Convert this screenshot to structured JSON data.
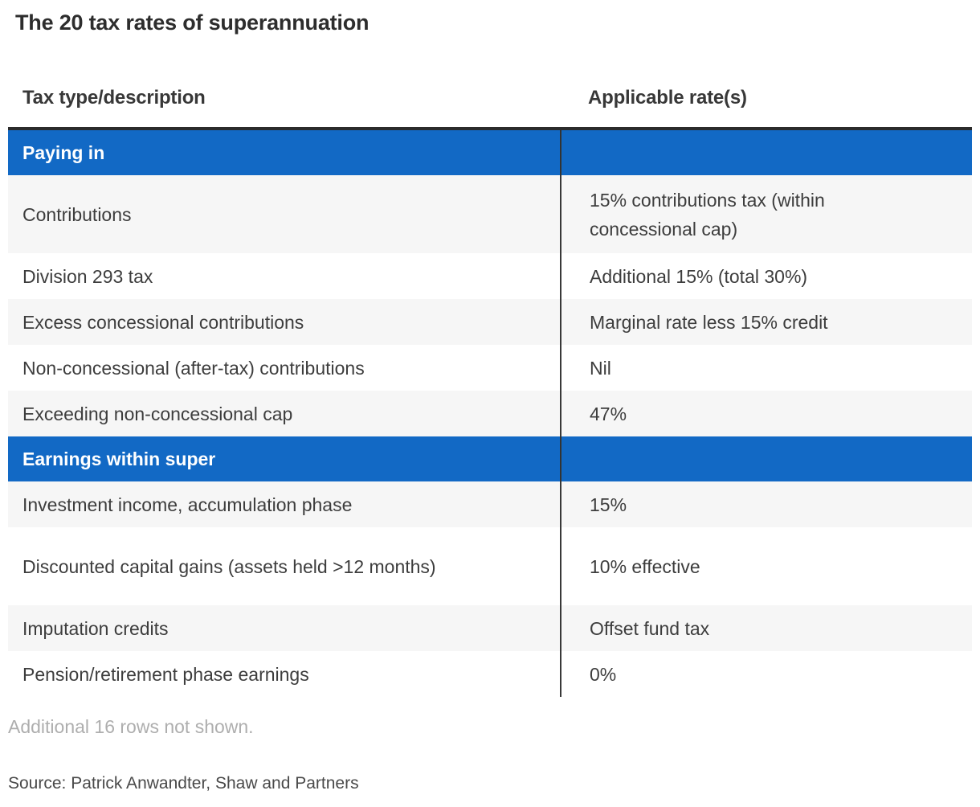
{
  "page": {
    "title": "The 20 tax rates of superannuation",
    "note": "Additional 16 rows not shown.",
    "source": "Source: Patrick Anwandter, Shaw and Partners"
  },
  "table": {
    "col1_header": "Tax type/description",
    "col2_header": "Applicable rate(s)",
    "sections": [
      {
        "header": "Paying in",
        "rows": [
          {
            "type": "Contributions",
            "rate": "15% contributions tax (within concessional cap)"
          },
          {
            "type": "Division 293 tax",
            "rate": "Additional 15% (total 30%)"
          },
          {
            "type": "Excess concessional contributions",
            "rate": "Marginal rate less 15% credit"
          },
          {
            "type": "Non-concessional (after-tax) contributions",
            "rate": "Nil"
          },
          {
            "type": "Exceeding non-concessional cap",
            "rate": "47%"
          }
        ]
      },
      {
        "header": "Earnings within super",
        "rows": [
          {
            "type": "Investment income, accumulation phase",
            "rate": "15%"
          },
          {
            "type": "Discounted capital gains (assets held >12 months)",
            "rate": "10% effective"
          },
          {
            "type": "Imputation credits",
            "rate": "Offset fund tax"
          },
          {
            "type": "Pension/retirement phase earnings",
            "rate": "0%"
          }
        ]
      }
    ]
  },
  "chart_data": {
    "type": "table",
    "title": "The 20 tax rates of superannuation",
    "columns": [
      "Tax type/description",
      "Applicable rate(s)"
    ],
    "groups": [
      {
        "name": "Paying in",
        "rows": [
          [
            "Contributions",
            "15% contributions tax (within concessional cap)"
          ],
          [
            "Division 293 tax",
            "Additional 15% (total 30%)"
          ],
          [
            "Excess concessional contributions",
            "Marginal rate less 15% credit"
          ],
          [
            "Non-concessional (after-tax) contributions",
            "Nil"
          ],
          [
            "Exceeding non-concessional cap",
            "47%"
          ]
        ]
      },
      {
        "name": "Earnings within super",
        "rows": [
          [
            "Investment income, accumulation phase",
            "15%"
          ],
          [
            "Discounted capital gains (assets held >12 months)",
            "10% effective"
          ],
          [
            "Imputation credits",
            "Offset fund tax"
          ],
          [
            "Pension/retirement phase earnings",
            "0%"
          ]
        ]
      }
    ],
    "footnote": "Additional 16 rows not shown.",
    "source": "Source: Patrick Anwandter, Shaw and Partners"
  },
  "colors": {
    "section_header_bg": "#1269c5",
    "section_header_text": "#ffffff",
    "row_alt_bg": "#f6f6f6",
    "row_bg": "#ffffff",
    "top_border": "#2b2b2b",
    "column_divider": "#383838",
    "body_text": "#3d3d3d",
    "note_text": "#aeaeae",
    "source_text": "#4a4a4a"
  }
}
